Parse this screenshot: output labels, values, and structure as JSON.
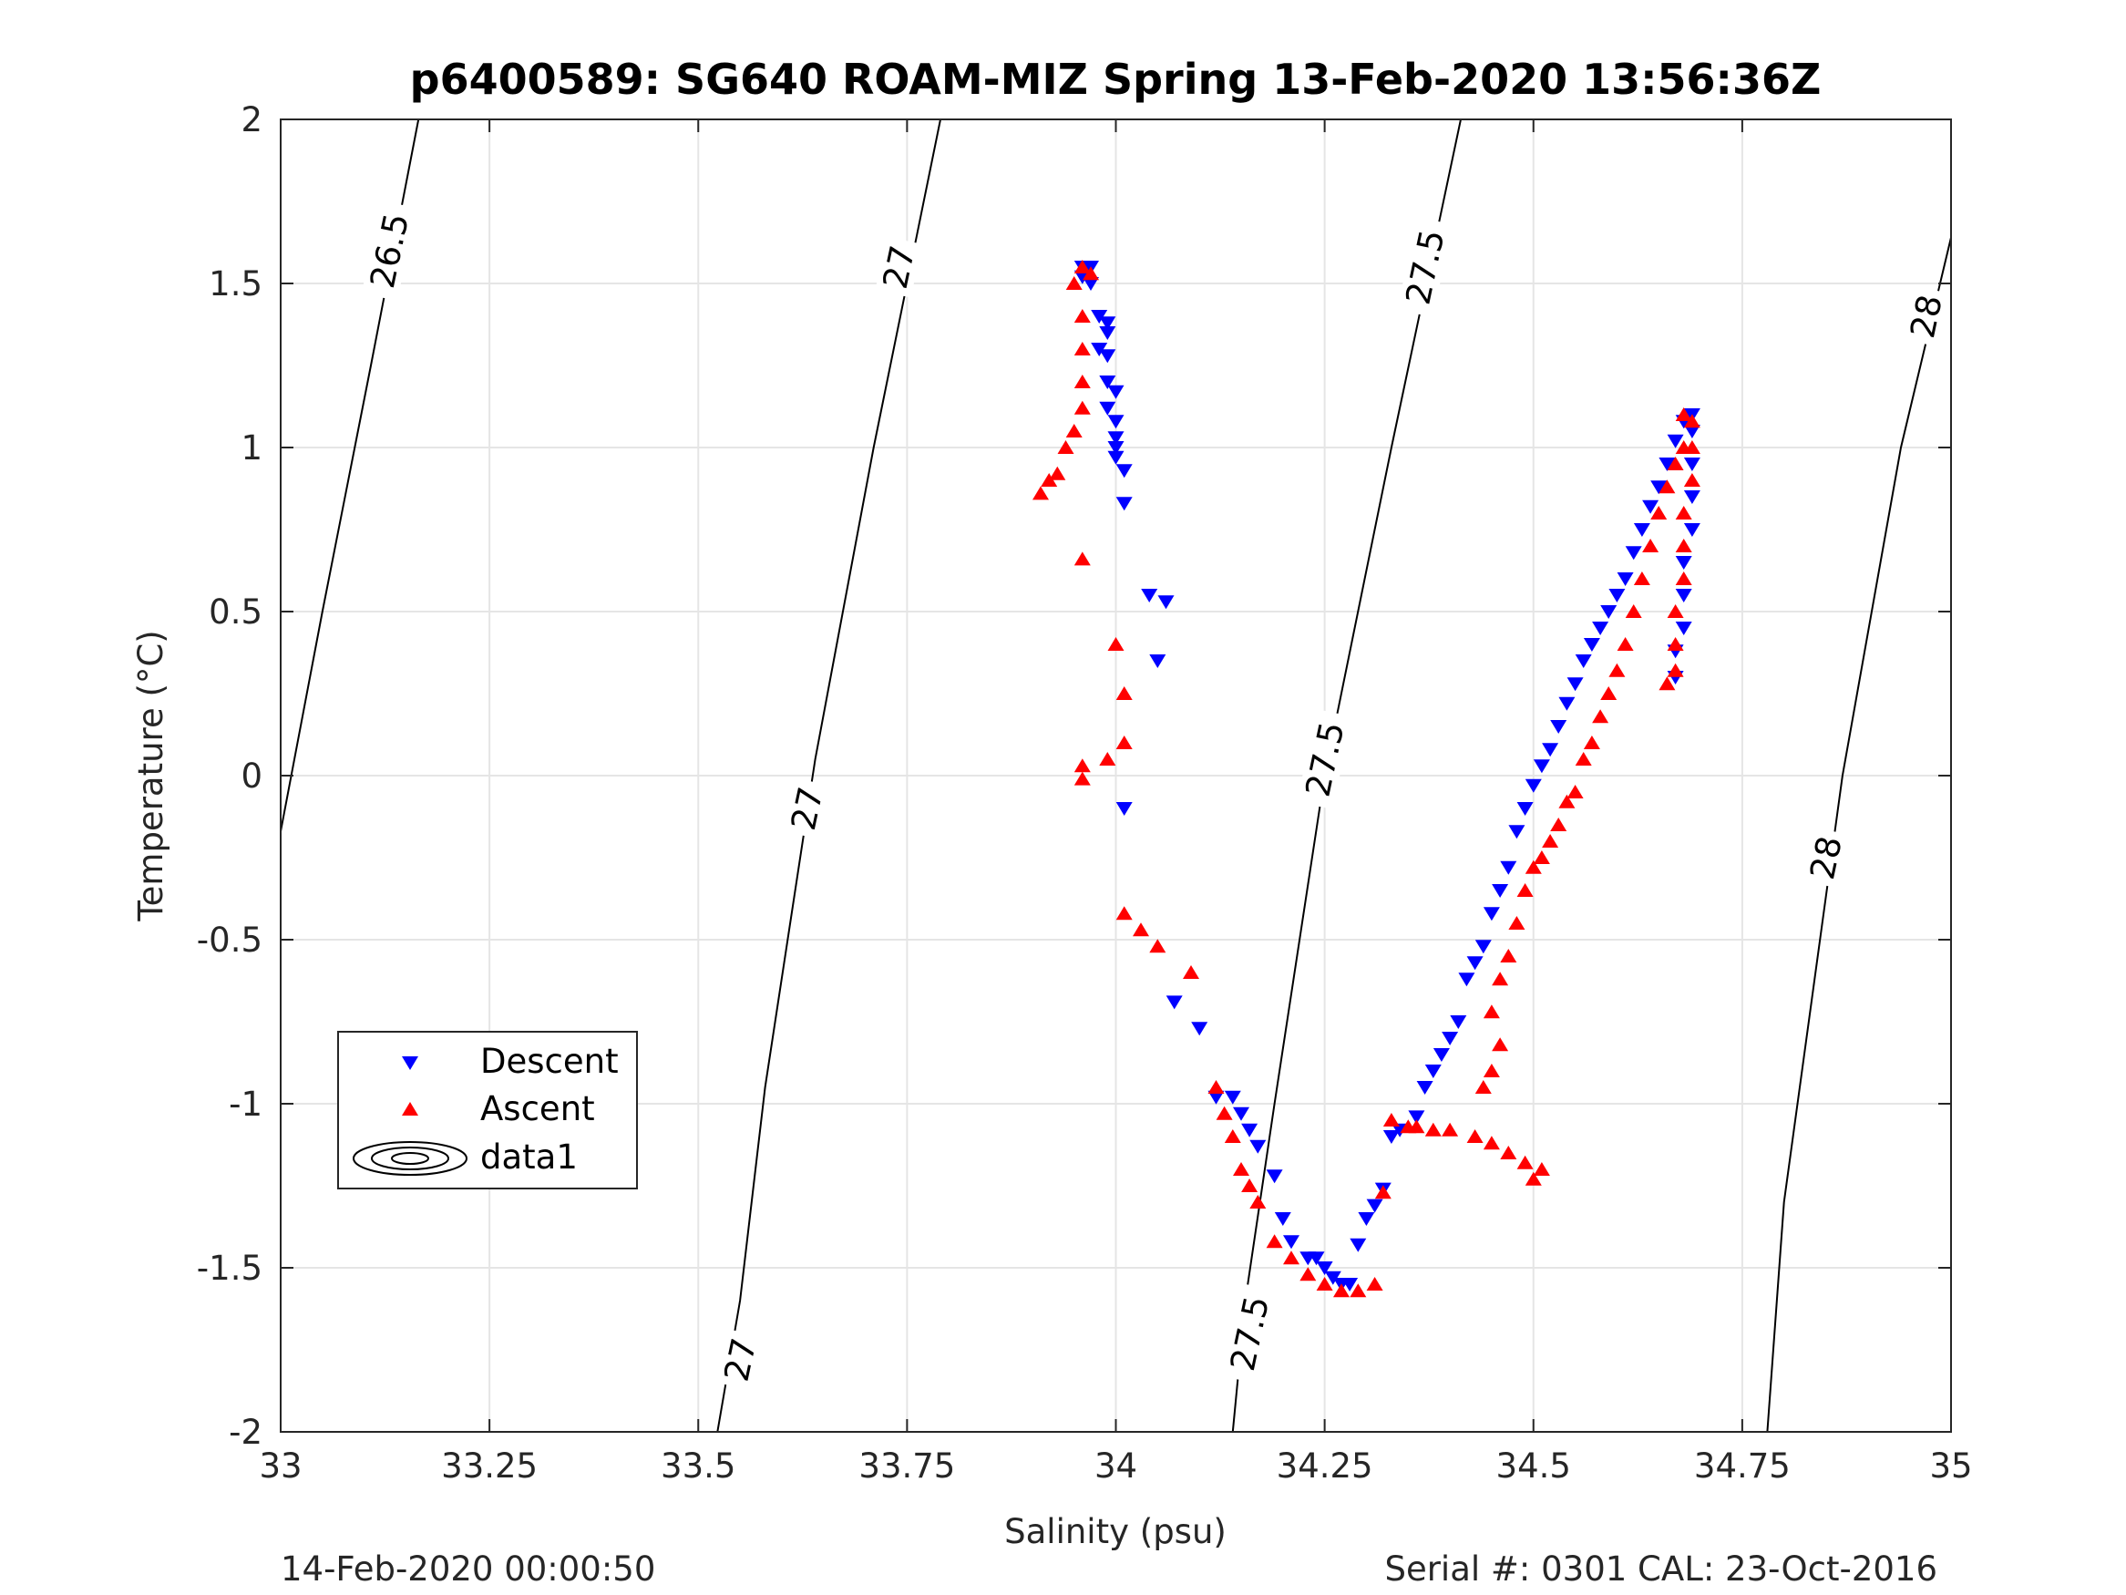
{
  "chart_data": {
    "type": "scatter",
    "title": "p6400589: SG640 ROAM-MIZ Spring 13-Feb-2020 13:56:36Z",
    "xlabel": "Salinity (psu)",
    "ylabel": "Temperature (°C)",
    "xlim": [
      33,
      35
    ],
    "ylim": [
      -2,
      2
    ],
    "xticks": [
      33,
      33.25,
      33.5,
      33.75,
      34,
      34.25,
      34.5,
      34.75,
      35
    ],
    "xtick_labels": [
      "33",
      "33.25",
      "33.5",
      "33.75",
      "34",
      "34.25",
      "34.5",
      "34.75",
      "35"
    ],
    "yticks": [
      -2,
      -1.5,
      -1,
      -0.5,
      0,
      0.5,
      1,
      1.5,
      2
    ],
    "ytick_labels": [
      "-2",
      "-1.5",
      "-1",
      "-0.5",
      "0",
      "0.5",
      "1",
      "1.5",
      "2"
    ],
    "grid": true,
    "legend_position": "lower-left",
    "series": [
      {
        "name": "Descent",
        "marker": "triangle-down",
        "color": "#0000ff",
        "points": [
          [
            33.96,
            1.55
          ],
          [
            33.97,
            1.55
          ],
          [
            33.96,
            1.52
          ],
          [
            33.97,
            1.5
          ],
          [
            33.98,
            1.4
          ],
          [
            33.99,
            1.38
          ],
          [
            33.99,
            1.35
          ],
          [
            33.98,
            1.3
          ],
          [
            33.99,
            1.28
          ],
          [
            33.99,
            1.2
          ],
          [
            34.0,
            1.17
          ],
          [
            33.99,
            1.12
          ],
          [
            34.0,
            1.08
          ],
          [
            34.0,
            1.03
          ],
          [
            34.0,
            1.0
          ],
          [
            34.0,
            0.97
          ],
          [
            34.01,
            0.93
          ],
          [
            34.01,
            0.83
          ],
          [
            34.04,
            0.55
          ],
          [
            34.06,
            0.53
          ],
          [
            34.05,
            0.35
          ],
          [
            34.01,
            -0.1
          ],
          [
            34.07,
            -0.69
          ],
          [
            34.1,
            -0.77
          ],
          [
            34.12,
            -0.98
          ],
          [
            34.14,
            -0.98
          ],
          [
            34.15,
            -1.03
          ],
          [
            34.16,
            -1.08
          ],
          [
            34.17,
            -1.13
          ],
          [
            34.19,
            -1.22
          ],
          [
            34.2,
            -1.35
          ],
          [
            34.21,
            -1.42
          ],
          [
            34.23,
            -1.47
          ],
          [
            34.24,
            -1.47
          ],
          [
            34.25,
            -1.5
          ],
          [
            34.26,
            -1.53
          ],
          [
            34.27,
            -1.55
          ],
          [
            34.28,
            -1.55
          ],
          [
            34.29,
            -1.43
          ],
          [
            34.3,
            -1.35
          ],
          [
            34.31,
            -1.31
          ],
          [
            34.32,
            -1.26
          ],
          [
            34.33,
            -1.1
          ],
          [
            34.34,
            -1.08
          ],
          [
            34.36,
            -1.04
          ],
          [
            34.37,
            -0.95
          ],
          [
            34.38,
            -0.9
          ],
          [
            34.39,
            -0.85
          ],
          [
            34.4,
            -0.8
          ],
          [
            34.41,
            -0.75
          ],
          [
            34.42,
            -0.62
          ],
          [
            34.43,
            -0.57
          ],
          [
            34.44,
            -0.52
          ],
          [
            34.45,
            -0.42
          ],
          [
            34.46,
            -0.35
          ],
          [
            34.47,
            -0.28
          ],
          [
            34.48,
            -0.17
          ],
          [
            34.49,
            -0.1
          ],
          [
            34.5,
            -0.03
          ],
          [
            34.51,
            0.03
          ],
          [
            34.52,
            0.08
          ],
          [
            34.53,
            0.15
          ],
          [
            34.54,
            0.22
          ],
          [
            34.55,
            0.28
          ],
          [
            34.56,
            0.35
          ],
          [
            34.57,
            0.4
          ],
          [
            34.58,
            0.45
          ],
          [
            34.59,
            0.5
          ],
          [
            34.6,
            0.55
          ],
          [
            34.61,
            0.6
          ],
          [
            34.62,
            0.68
          ],
          [
            34.63,
            0.75
          ],
          [
            34.64,
            0.82
          ],
          [
            34.65,
            0.88
          ],
          [
            34.66,
            0.95
          ],
          [
            34.67,
            1.02
          ],
          [
            34.68,
            1.08
          ],
          [
            34.69,
            1.1
          ],
          [
            34.69,
            1.05
          ],
          [
            34.69,
            0.95
          ],
          [
            34.69,
            0.85
          ],
          [
            34.69,
            0.75
          ],
          [
            34.68,
            0.65
          ],
          [
            34.68,
            0.55
          ],
          [
            34.68,
            0.45
          ],
          [
            34.67,
            0.38
          ],
          [
            34.67,
            0.3
          ]
        ]
      },
      {
        "name": "Ascent",
        "marker": "triangle-up",
        "color": "#ff0000",
        "points": [
          [
            34.51,
            -1.2
          ],
          [
            34.5,
            -1.23
          ],
          [
            34.49,
            -1.18
          ],
          [
            34.47,
            -1.15
          ],
          [
            34.45,
            -1.12
          ],
          [
            34.43,
            -1.1
          ],
          [
            34.4,
            -1.08
          ],
          [
            34.38,
            -1.08
          ],
          [
            34.36,
            -1.07
          ],
          [
            34.35,
            -1.07
          ],
          [
            34.33,
            -1.05
          ],
          [
            34.32,
            -1.27
          ],
          [
            34.31,
            -1.55
          ],
          [
            34.29,
            -1.57
          ],
          [
            34.27,
            -1.57
          ],
          [
            34.25,
            -1.55
          ],
          [
            34.23,
            -1.52
          ],
          [
            34.21,
            -1.47
          ],
          [
            34.19,
            -1.42
          ],
          [
            34.17,
            -1.3
          ],
          [
            34.16,
            -1.25
          ],
          [
            34.15,
            -1.2
          ],
          [
            34.14,
            -1.1
          ],
          [
            34.13,
            -1.03
          ],
          [
            34.12,
            -0.95
          ],
          [
            34.09,
            -0.6
          ],
          [
            34.05,
            -0.52
          ],
          [
            34.03,
            -0.47
          ],
          [
            34.01,
            -0.42
          ],
          [
            33.96,
            -0.01
          ],
          [
            33.96,
            0.03
          ],
          [
            33.99,
            0.05
          ],
          [
            34.01,
            0.1
          ],
          [
            34.01,
            0.25
          ],
          [
            34.0,
            0.4
          ],
          [
            33.96,
            0.66
          ],
          [
            33.91,
            0.86
          ],
          [
            33.92,
            0.9
          ],
          [
            33.93,
            0.92
          ],
          [
            33.94,
            1.0
          ],
          [
            33.95,
            1.05
          ],
          [
            33.96,
            1.12
          ],
          [
            33.96,
            1.2
          ],
          [
            33.96,
            1.3
          ],
          [
            33.96,
            1.4
          ],
          [
            33.95,
            1.5
          ],
          [
            33.97,
            1.53
          ],
          [
            33.96,
            1.55
          ],
          [
            34.44,
            -0.95
          ],
          [
            34.45,
            -0.9
          ],
          [
            34.46,
            -0.82
          ],
          [
            34.45,
            -0.72
          ],
          [
            34.46,
            -0.62
          ],
          [
            34.47,
            -0.55
          ],
          [
            34.48,
            -0.45
          ],
          [
            34.49,
            -0.35
          ],
          [
            34.5,
            -0.28
          ],
          [
            34.51,
            -0.25
          ],
          [
            34.52,
            -0.2
          ],
          [
            34.53,
            -0.15
          ],
          [
            34.54,
            -0.08
          ],
          [
            34.55,
            -0.05
          ],
          [
            34.56,
            0.05
          ],
          [
            34.57,
            0.1
          ],
          [
            34.58,
            0.18
          ],
          [
            34.59,
            0.25
          ],
          [
            34.6,
            0.32
          ],
          [
            34.61,
            0.4
          ],
          [
            34.62,
            0.5
          ],
          [
            34.63,
            0.6
          ],
          [
            34.64,
            0.7
          ],
          [
            34.65,
            0.8
          ],
          [
            34.66,
            0.88
          ],
          [
            34.67,
            0.95
          ],
          [
            34.68,
            1.0
          ],
          [
            34.68,
            1.1
          ],
          [
            34.69,
            1.08
          ],
          [
            34.69,
            1.0
          ],
          [
            34.69,
            0.9
          ],
          [
            34.68,
            0.8
          ],
          [
            34.68,
            0.7
          ],
          [
            34.68,
            0.6
          ],
          [
            34.67,
            0.5
          ],
          [
            34.67,
            0.4
          ],
          [
            34.67,
            0.32
          ],
          [
            34.66,
            0.28
          ]
        ]
      }
    ],
    "contours": [
      {
        "label": "26.5",
        "label_positions": [
          [
            33.13,
            1.6
          ]
        ]
      },
      {
        "label": "27",
        "label_positions": [
          [
            33.74,
            1.55
          ],
          [
            33.63,
            -0.1
          ],
          [
            33.55,
            -1.78
          ]
        ]
      },
      {
        "label": "27.5",
        "label_positions": [
          [
            34.37,
            1.55
          ],
          [
            34.25,
            0.05
          ],
          [
            34.16,
            -1.7
          ]
        ]
      },
      {
        "label": "28",
        "label_positions": [
          [
            34.97,
            1.4
          ],
          [
            34.85,
            -0.25
          ]
        ]
      }
    ],
    "legend": [
      "Descent",
      "Ascent",
      "data1"
    ]
  },
  "footer": {
    "left": "14-Feb-2020 00:00:50",
    "right": "Serial #: 0301  CAL: 23-Oct-2016"
  }
}
